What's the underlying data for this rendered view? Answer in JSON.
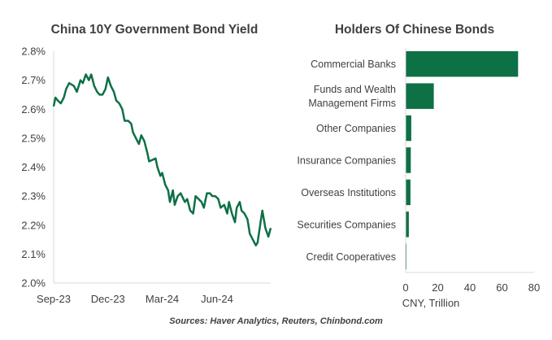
{
  "colors": {
    "series": "#0e7045",
    "axis": "#d9d9d9",
    "text": "#404040"
  },
  "source_note": "Sources: Haver Analytics, Reuters, Chinbond.com",
  "chart_data": [
    {
      "type": "line",
      "title": "China 10Y Government Bond Yield",
      "xlabel": "",
      "ylabel": "",
      "x_ticks": [
        "Sep-23",
        "Dec-23",
        "Mar-24",
        "Jun-24"
      ],
      "y_ticks": [
        "2.8%",
        "2.7%",
        "2.6%",
        "2.5%",
        "2.4%",
        "2.3%",
        "2.2%",
        "2.1%",
        "2.0%"
      ],
      "ylim": [
        2.0,
        2.8
      ],
      "grid": false,
      "series": [
        {
          "x": [
            "2023-09-01",
            "2023-09-04",
            "2023-09-08",
            "2023-09-13",
            "2023-09-18",
            "2023-09-22",
            "2023-09-27",
            "2023-10-05",
            "2023-10-10",
            "2023-10-16",
            "2023-10-20",
            "2023-10-25",
            "2023-10-30",
            "2023-11-03",
            "2023-11-08",
            "2023-11-13",
            "2023-11-17",
            "2023-11-22",
            "2023-11-27",
            "2023-12-01",
            "2023-12-06",
            "2023-12-11",
            "2023-12-15",
            "2023-12-20",
            "2023-12-25",
            "2023-12-29",
            "2024-01-04",
            "2024-01-09",
            "2024-01-12",
            "2024-01-17",
            "2024-01-22",
            "2024-01-26",
            "2024-01-31",
            "2024-02-05",
            "2024-02-08",
            "2024-02-19",
            "2024-02-22",
            "2024-02-27",
            "2024-03-01",
            "2024-03-06",
            "2024-03-11",
            "2024-03-14",
            "2024-03-19",
            "2024-03-22",
            "2024-03-27",
            "2024-04-01",
            "2024-04-08",
            "2024-04-12",
            "2024-04-17",
            "2024-04-22",
            "2024-04-26",
            "2024-05-06",
            "2024-05-10",
            "2024-05-15",
            "2024-05-20",
            "2024-05-24",
            "2024-05-29",
            "2024-06-03",
            "2024-06-07",
            "2024-06-13",
            "2024-06-18",
            "2024-06-21",
            "2024-06-26",
            "2024-07-01",
            "2024-07-04",
            "2024-07-09",
            "2024-07-12",
            "2024-07-17",
            "2024-07-22",
            "2024-07-26",
            "2024-07-31",
            "2024-08-05",
            "2024-08-08",
            "2024-08-13",
            "2024-08-16",
            "2024-08-21",
            "2024-08-26",
            "2024-08-30"
          ],
          "values": [
            2.61,
            2.64,
            2.63,
            2.62,
            2.64,
            2.67,
            2.69,
            2.68,
            2.66,
            2.7,
            2.69,
            2.72,
            2.7,
            2.72,
            2.68,
            2.66,
            2.65,
            2.65,
            2.67,
            2.71,
            2.68,
            2.66,
            2.63,
            2.62,
            2.6,
            2.56,
            2.56,
            2.55,
            2.52,
            2.5,
            2.48,
            2.51,
            2.49,
            2.45,
            2.42,
            2.43,
            2.4,
            2.37,
            2.38,
            2.34,
            2.32,
            2.28,
            2.32,
            2.27,
            2.3,
            2.31,
            2.28,
            2.29,
            2.25,
            2.24,
            2.3,
            2.28,
            2.26,
            2.31,
            2.31,
            2.3,
            2.3,
            2.29,
            2.26,
            2.27,
            2.24,
            2.28,
            2.24,
            2.21,
            2.26,
            2.28,
            2.25,
            2.24,
            2.22,
            2.17,
            2.15,
            2.13,
            2.14,
            2.21,
            2.25,
            2.19,
            2.16,
            2.19
          ]
        }
      ]
    },
    {
      "type": "bar",
      "orientation": "horizontal",
      "title": "Holders Of Chinese Bonds",
      "xlabel": "CNY, Trillion",
      "categories": [
        [
          "Commercial Banks"
        ],
        [
          "Funds and Wealth",
          "Management Firms"
        ],
        [
          "Other Companies"
        ],
        [
          "Insurance Companies"
        ],
        [
          "Overseas Institutions"
        ],
        [
          "Securities Companies"
        ],
        [
          "Credit Cooperatives"
        ]
      ],
      "values": [
        70,
        17.5,
        3.5,
        3.2,
        3.0,
        2.0,
        0.5
      ],
      "x_ticks": [
        "0",
        "20",
        "40",
        "60",
        "80"
      ],
      "xlim": [
        0,
        80
      ],
      "grid": false
    }
  ]
}
